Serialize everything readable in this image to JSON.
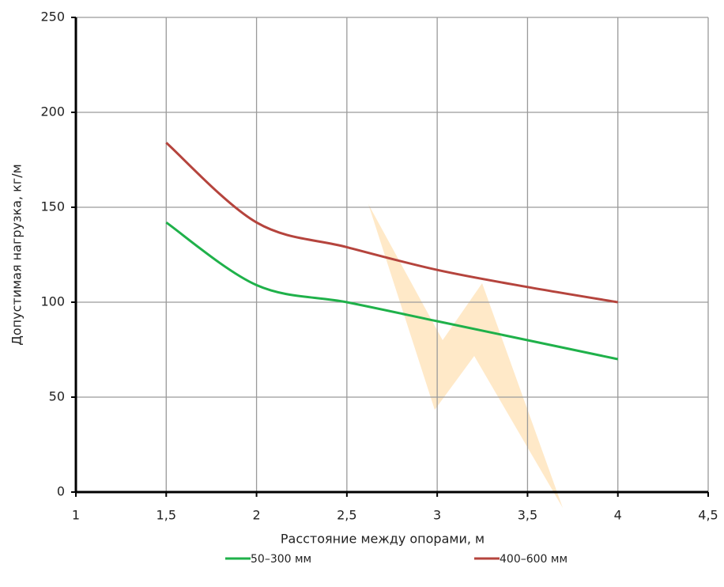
{
  "chart_data": {
    "type": "line",
    "x_label": "Расстояние между опорами, м",
    "y_label": "Допустимая нагрузка, кг/м",
    "x": [
      1.5,
      2,
      2.5,
      3,
      3.5,
      4
    ],
    "series": [
      {
        "name": "50–300 мм",
        "color": "#1fb14a",
        "values": [
          142,
          109,
          100,
          90,
          80,
          70
        ]
      },
      {
        "name": "400–600 мм",
        "color": "#b5443d",
        "values": [
          184,
          142,
          129,
          117,
          108,
          100
        ]
      }
    ],
    "xlim": [
      1,
      4.5
    ],
    "xticks": [
      1,
      {
        "value": 1.5,
        "label": "1,5"
      },
      2,
      {
        "value": 2.5,
        "label": "2,5"
      },
      3,
      {
        "value": 3.5,
        "label": "3,5"
      },
      4,
      {
        "value": 4.5,
        "label": "4,5"
      }
    ],
    "ylim": [
      0,
      250
    ],
    "yticks": [
      0,
      50,
      100,
      150,
      200,
      250
    ],
    "grid": true
  }
}
